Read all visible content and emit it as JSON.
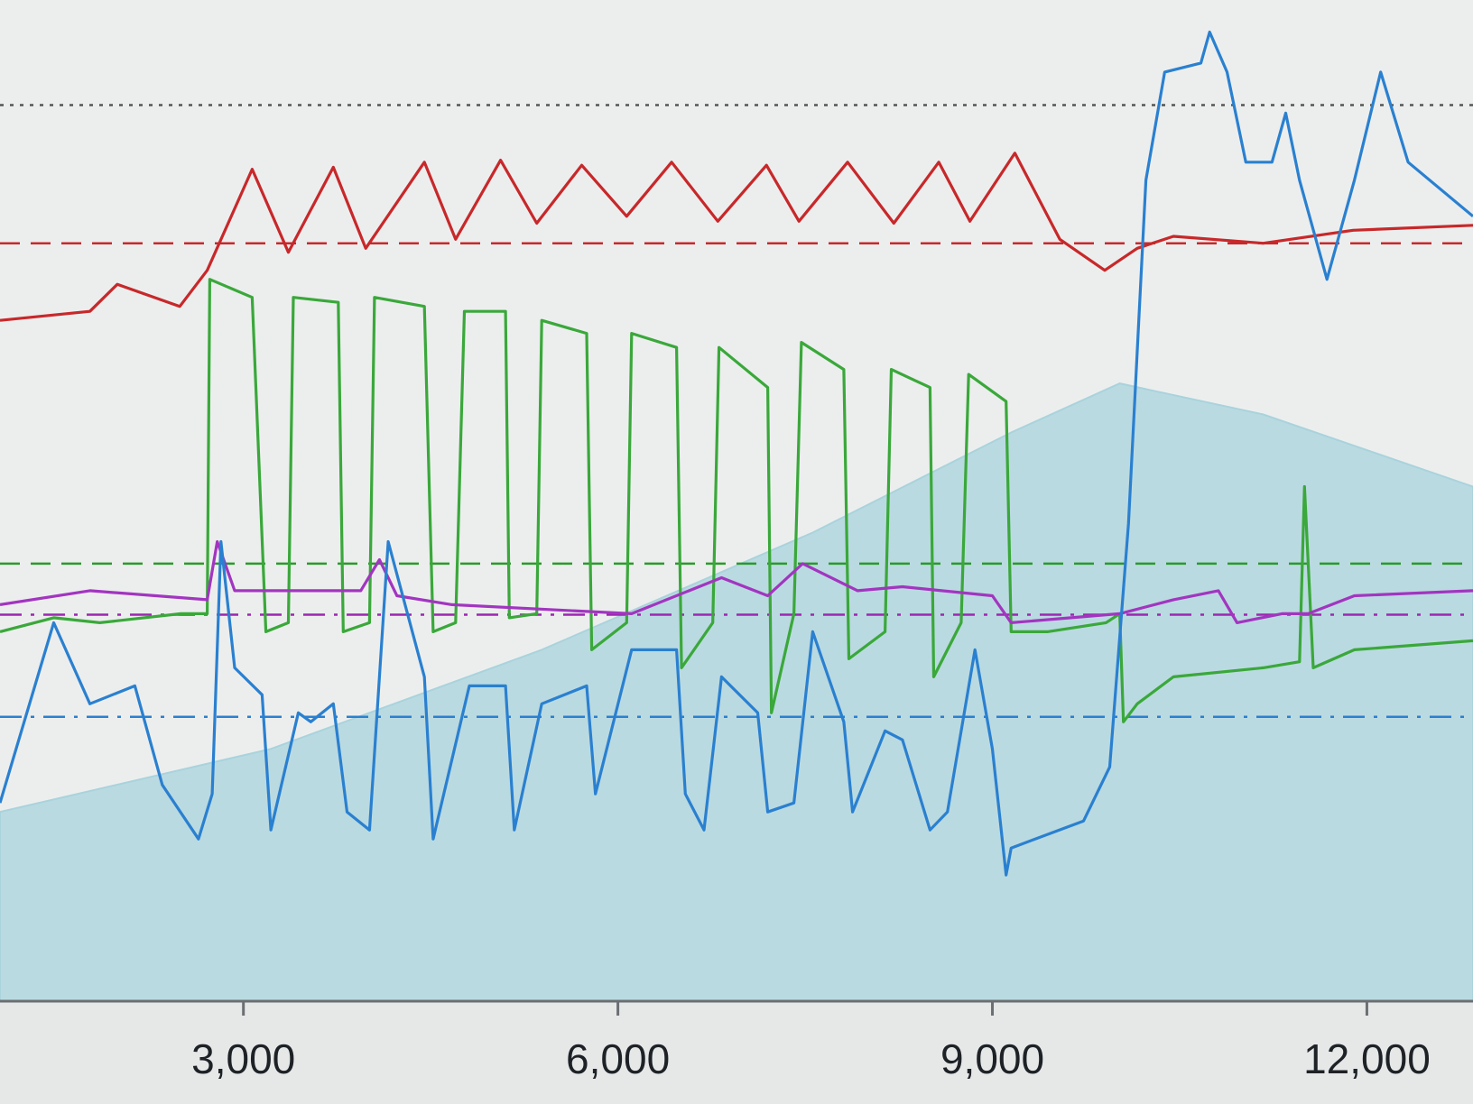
{
  "chart_data": {
    "type": "line",
    "xlim": [
      1050,
      12850
    ],
    "ylim": [
      0,
      100
    ],
    "xticks": [
      {
        "value": 3000,
        "label": "3,000"
      },
      {
        "value": 6000,
        "label": "6,000"
      },
      {
        "value": 9000,
        "label": "9,000"
      },
      {
        "value": 12000,
        "label": "12,000"
      }
    ],
    "hlines": [
      {
        "value": 89.5,
        "color": "#555555",
        "dash": "dotted"
      },
      {
        "value": 75.7,
        "color": "#c8282a",
        "dash": "dashed"
      },
      {
        "value": 43.7,
        "color": "#2a9a2a",
        "dash": "dashed"
      },
      {
        "value": 38.6,
        "color": "#9c27b0",
        "dash": "dashdot"
      },
      {
        "value": 28.4,
        "color": "#2a80d0",
        "dash": "dashdot"
      }
    ],
    "series": [
      {
        "color": "#a9d3dc",
        "fill": true,
        "x": [
          1050,
          3220,
          5390,
          7560,
          9150,
          10020,
          11170,
          12850
        ],
        "values": [
          18.9,
          25.2,
          35.1,
          46.8,
          56.8,
          61.7,
          58.6,
          51.4
        ]
      },
      {
        "color": "#c8282a",
        "fill": false,
        "x": [
          1050,
          1770,
          1990,
          2490,
          2710,
          3070,
          3360,
          3720,
          3980,
          4450,
          4700,
          5060,
          5350,
          5710,
          6070,
          6430,
          6800,
          7190,
          7450,
          7840,
          8210,
          8570,
          8820,
          9180,
          9540,
          9900,
          10160,
          10450,
          11170,
          11890,
          12850
        ],
        "values": [
          68.0,
          68.9,
          71.6,
          69.4,
          73.0,
          83.1,
          74.8,
          83.3,
          75.2,
          83.8,
          76.1,
          84.0,
          77.7,
          83.5,
          78.4,
          83.8,
          77.9,
          83.5,
          77.9,
          83.8,
          77.7,
          83.8,
          77.9,
          84.7,
          76.1,
          73.0,
          75.2,
          76.4,
          75.7,
          77.0,
          77.5
        ]
      },
      {
        "color": "#3aa83a",
        "fill": false,
        "x": [
          1050,
          1480,
          1850,
          2500,
          2710,
          2730,
          3070,
          3180,
          3360,
          3400,
          3760,
          3800,
          4010,
          4050,
          4450,
          4520,
          4700,
          4770,
          5100,
          5130,
          5350,
          5390,
          5750,
          5790,
          6070,
          6110,
          6470,
          6510,
          6760,
          6810,
          7200,
          7230,
          7410,
          7470,
          7810,
          7850,
          8140,
          8190,
          8500,
          8530,
          8750,
          8810,
          9110,
          9150,
          9440,
          9910,
          10020,
          10050,
          10160,
          10450,
          11170,
          11460,
          11500,
          11570,
          11900,
          12850
        ],
        "values": [
          36.9,
          38.3,
          37.8,
          38.7,
          38.7,
          72.1,
          70.3,
          36.9,
          37.8,
          70.3,
          69.8,
          36.9,
          37.8,
          70.3,
          69.4,
          36.9,
          37.8,
          68.9,
          68.9,
          38.3,
          38.7,
          68.0,
          66.7,
          35.1,
          37.8,
          66.7,
          65.3,
          33.3,
          37.8,
          65.3,
          61.3,
          28.8,
          38.7,
          65.8,
          63.1,
          34.2,
          36.9,
          63.1,
          61.3,
          32.4,
          37.8,
          62.6,
          59.9,
          36.9,
          36.9,
          37.8,
          38.7,
          27.9,
          29.7,
          32.4,
          33.3,
          33.9,
          51.4,
          33.3,
          35.1,
          36.0
        ]
      },
      {
        "color": "#a235c0",
        "fill": false,
        "x": [
          1050,
          1770,
          2710,
          2790,
          2930,
          3940,
          4090,
          4230,
          4670,
          6110,
          6830,
          7200,
          7480,
          7920,
          8280,
          9000,
          9150,
          10020,
          10450,
          10810,
          10960,
          11320,
          11530,
          11900,
          12850
        ],
        "values": [
          39.6,
          41.0,
          40.1,
          45.9,
          41.0,
          41.0,
          44.1,
          40.5,
          39.6,
          38.7,
          42.3,
          40.5,
          43.7,
          41.0,
          41.4,
          40.5,
          37.8,
          38.7,
          40.1,
          41.0,
          37.8,
          38.7,
          38.7,
          40.5,
          41.0
        ]
      },
      {
        "color": "#2a80d0",
        "fill": false,
        "x": [
          1050,
          1480,
          1770,
          2130,
          2350,
          2640,
          2750,
          2820,
          2930,
          3150,
          3220,
          3440,
          3540,
          3720,
          3830,
          4010,
          4160,
          4450,
          4520,
          4810,
          5100,
          5170,
          5390,
          5750,
          5820,
          6110,
          6470,
          6540,
          6690,
          6830,
          7120,
          7200,
          7410,
          7560,
          7810,
          7880,
          8140,
          8280,
          8500,
          8640,
          8860,
          9000,
          9110,
          9150,
          9730,
          9940,
          10090,
          10230,
          10380,
          10670,
          10740,
          10880,
          11030,
          11240,
          11350,
          11460,
          11680,
          11900,
          12110,
          12330,
          12850
        ],
        "values": [
          19.8,
          37.8,
          29.7,
          31.5,
          21.6,
          16.2,
          20.7,
          45.9,
          33.3,
          30.6,
          17.1,
          28.8,
          27.9,
          29.7,
          18.9,
          17.1,
          45.9,
          32.4,
          16.2,
          31.5,
          31.5,
          17.1,
          29.7,
          31.5,
          20.7,
          35.1,
          35.1,
          20.7,
          17.1,
          32.4,
          28.8,
          18.9,
          19.8,
          36.9,
          27.9,
          18.9,
          27.0,
          26.1,
          17.1,
          18.9,
          35.1,
          25.2,
          12.6,
          15.3,
          18.0,
          23.4,
          47.7,
          82.0,
          92.8,
          93.7,
          96.8,
          92.8,
          83.8,
          83.8,
          88.7,
          82.0,
          72.1,
          82.0,
          92.8,
          83.8,
          78.4
        ]
      }
    ]
  }
}
